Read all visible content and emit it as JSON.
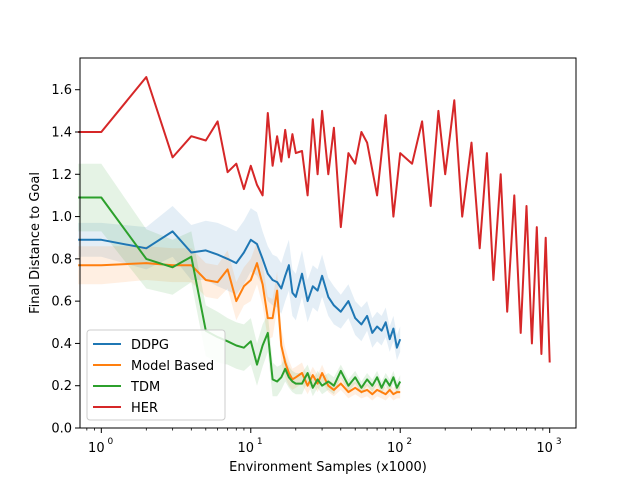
{
  "chart_data": {
    "type": "line",
    "title": "",
    "xlabel": "Environment Samples (x1000)",
    "ylabel": "Final Distance to Goal",
    "xscale": "log",
    "xlim": [
      0.72,
      1500
    ],
    "ylim": [
      0.0,
      1.75
    ],
    "xticks": [
      {
        "value": 1,
        "base": "10",
        "exp": "0"
      },
      {
        "value": 10,
        "base": "10",
        "exp": "1"
      },
      {
        "value": 100,
        "base": "10",
        "exp": "2"
      },
      {
        "value": 1000,
        "base": "10",
        "exp": "3"
      }
    ],
    "yticks": [
      0.0,
      0.2,
      0.4,
      0.6,
      0.8,
      1.0,
      1.2,
      1.4,
      1.6
    ],
    "ytick_labels": [
      "0.0",
      "0.2",
      "0.4",
      "0.6",
      "0.8",
      "1.0",
      "1.2",
      "1.4",
      "1.6"
    ],
    "grid": false,
    "legend": {
      "position": "lower-left"
    },
    "series": [
      {
        "name": "DDPG",
        "color": "#1f77b4",
        "x": [
          0.7,
          1,
          2,
          3,
          4,
          5,
          6,
          7,
          8,
          9,
          10,
          11,
          12,
          13,
          14,
          15,
          16,
          17,
          18,
          19,
          20,
          22,
          24,
          26,
          28,
          30,
          33,
          36,
          40,
          45,
          50,
          55,
          60,
          65,
          70,
          75,
          80,
          85,
          90,
          95,
          100
        ],
        "y": [
          0.89,
          0.89,
          0.85,
          0.93,
          0.83,
          0.84,
          0.82,
          0.8,
          0.78,
          0.83,
          0.89,
          0.87,
          0.8,
          0.73,
          0.7,
          0.69,
          0.66,
          0.72,
          0.77,
          0.64,
          0.62,
          0.73,
          0.6,
          0.67,
          0.65,
          0.72,
          0.62,
          0.58,
          0.55,
          0.6,
          0.52,
          0.49,
          0.53,
          0.45,
          0.48,
          0.46,
          0.5,
          0.42,
          0.47,
          0.38,
          0.42
        ],
        "band": [
          0.08,
          0.08,
          0.1,
          0.12,
          0.13,
          0.14,
          0.15,
          0.15,
          0.15,
          0.15,
          0.15,
          0.15,
          0.13,
          0.13,
          0.12,
          0.12,
          0.12,
          0.12,
          0.12,
          0.11,
          0.11,
          0.11,
          0.1,
          0.1,
          0.1,
          0.1,
          0.09,
          0.09,
          0.08,
          0.08,
          0.08,
          0.08,
          0.07,
          0.07,
          0.07,
          0.07,
          0.07,
          0.06,
          0.06,
          0.06,
          0.06
        ]
      },
      {
        "name": "Model Based",
        "color": "#ff7f0e",
        "x": [
          0.7,
          1,
          2,
          3,
          4,
          5,
          6,
          7,
          8,
          9,
          10,
          11,
          12,
          13,
          14,
          15,
          16,
          17,
          18,
          19,
          20,
          22,
          24,
          26,
          28,
          30,
          33,
          36,
          40,
          45,
          50,
          55,
          60,
          65,
          70,
          75,
          80,
          85,
          90,
          95,
          100
        ],
        "y": [
          0.77,
          0.77,
          0.78,
          0.77,
          0.77,
          0.7,
          0.69,
          0.75,
          0.6,
          0.67,
          0.7,
          0.78,
          0.68,
          0.52,
          0.52,
          0.65,
          0.39,
          0.31,
          0.26,
          0.23,
          0.24,
          0.26,
          0.2,
          0.25,
          0.21,
          0.26,
          0.2,
          0.18,
          0.21,
          0.17,
          0.19,
          0.17,
          0.18,
          0.16,
          0.18,
          0.17,
          0.16,
          0.18,
          0.16,
          0.17,
          0.17
        ],
        "band": [
          0.09,
          0.09,
          0.08,
          0.08,
          0.08,
          0.08,
          0.08,
          0.09,
          0.09,
          0.09,
          0.1,
          0.1,
          0.1,
          0.1,
          0.09,
          0.09,
          0.08,
          0.07,
          0.06,
          0.05,
          0.05,
          0.05,
          0.04,
          0.04,
          0.04,
          0.04,
          0.03,
          0.03,
          0.03,
          0.03,
          0.03,
          0.03,
          0.03,
          0.03,
          0.03,
          0.03,
          0.03,
          0.03,
          0.03,
          0.03,
          0.03
        ]
      },
      {
        "name": "TDM",
        "color": "#2ca02c",
        "x": [
          0.7,
          1,
          2,
          3,
          4,
          5,
          6,
          7,
          8,
          9,
          10,
          11,
          12,
          13,
          14,
          15,
          16,
          17,
          18,
          19,
          20,
          22,
          24,
          26,
          28,
          30,
          33,
          36,
          40,
          45,
          50,
          55,
          60,
          65,
          70,
          75,
          80,
          85,
          90,
          95,
          100
        ],
        "y": [
          1.09,
          1.09,
          0.8,
          0.76,
          0.81,
          0.46,
          0.43,
          0.41,
          0.39,
          0.38,
          0.41,
          0.3,
          0.39,
          0.45,
          0.23,
          0.22,
          0.24,
          0.28,
          0.24,
          0.22,
          0.21,
          0.21,
          0.26,
          0.19,
          0.23,
          0.2,
          0.22,
          0.2,
          0.27,
          0.2,
          0.24,
          0.19,
          0.23,
          0.2,
          0.24,
          0.19,
          0.23,
          0.2,
          0.24,
          0.19,
          0.22
        ],
        "band": [
          0.16,
          0.16,
          0.14,
          0.13,
          0.12,
          0.12,
          0.12,
          0.11,
          0.11,
          0.11,
          0.11,
          0.1,
          0.1,
          0.09,
          0.08,
          0.07,
          0.06,
          0.06,
          0.05,
          0.05,
          0.05,
          0.05,
          0.04,
          0.04,
          0.04,
          0.04,
          0.04,
          0.04,
          0.03,
          0.03,
          0.03,
          0.03,
          0.03,
          0.03,
          0.03,
          0.03,
          0.03,
          0.03,
          0.03,
          0.03,
          0.03
        ]
      },
      {
        "name": "HER",
        "color": "#d62728",
        "x": [
          0.7,
          1,
          2,
          3,
          4,
          5,
          6,
          7,
          8,
          9,
          10,
          11,
          12,
          13,
          14,
          15,
          16,
          17,
          18,
          19,
          20,
          22,
          24,
          26,
          28,
          30,
          33,
          36,
          40,
          45,
          50,
          55,
          60,
          70,
          80,
          90,
          100,
          120,
          140,
          160,
          180,
          200,
          230,
          260,
          300,
          340,
          380,
          420,
          470,
          520,
          580,
          640,
          700,
          760,
          820,
          880,
          940,
          1000
        ],
        "y": [
          1.4,
          1.4,
          1.66,
          1.28,
          1.38,
          1.36,
          1.45,
          1.21,
          1.25,
          1.13,
          1.24,
          1.15,
          1.1,
          1.49,
          1.24,
          1.38,
          1.26,
          1.41,
          1.28,
          1.39,
          1.3,
          1.31,
          1.1,
          1.46,
          1.2,
          1.5,
          1.2,
          1.42,
          0.95,
          1.3,
          1.25,
          1.4,
          1.35,
          1.1,
          1.48,
          1.0,
          1.3,
          1.25,
          1.45,
          1.05,
          1.5,
          1.2,
          1.55,
          1.0,
          1.35,
          0.85,
          1.3,
          0.7,
          1.2,
          0.55,
          1.1,
          0.45,
          1.05,
          0.4,
          0.95,
          0.35,
          0.9,
          0.31
        ],
        "band": []
      }
    ]
  }
}
